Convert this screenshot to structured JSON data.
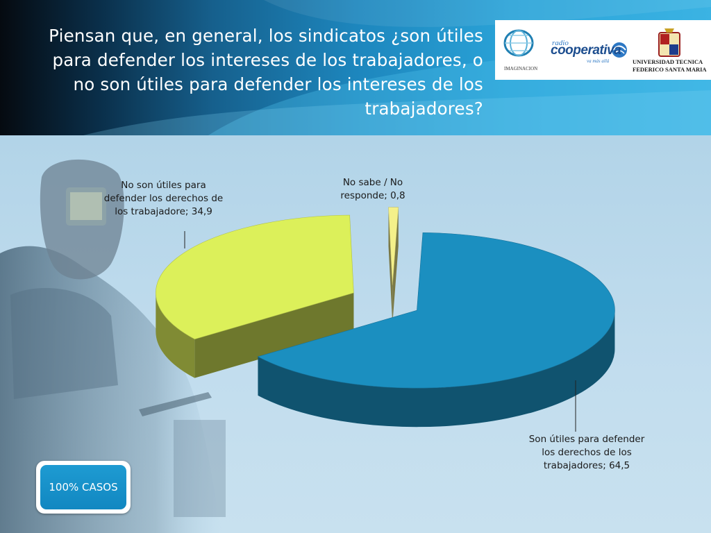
{
  "title": "Piensan que, en general, los sindicatos ¿son útiles para defender los intereses de los trabajadores, o no son útiles para defender los intereses de los trabajadores?",
  "logos": {
    "imaginacion": "IMAGINACION",
    "radio": "radio",
    "cooperativa": "cooperativa",
    "tagline": "va más allá",
    "university_line1": "UNIVERSIDAD TECNICA",
    "university_line2": "FEDERICO SANTA MARIA"
  },
  "button": {
    "casos_label": "100% CASOS"
  },
  "colors": {
    "son_utiles": "#1b8fc0",
    "no_son_utiles": "#dcf05a",
    "no_sabe": "#f4f08a"
  },
  "chart_data": {
    "type": "pie",
    "subtype": "3d-exploded",
    "slices": [
      {
        "category": "Son útiles para defender los derechos de los trabajadores",
        "value": 64.5,
        "label": "Son útiles para defender los derechos de los trabajadores; 64,5"
      },
      {
        "category": "No son útiles para defender los derechos de los trabajadore",
        "value": 34.9,
        "label": "No son útiles para defender los derechos de los trabajadore; 34,9"
      },
      {
        "category": "No sabe / No responde",
        "value": 0.8,
        "label": "No sabe / No responde; 0,8"
      }
    ],
    "legend": "none"
  }
}
